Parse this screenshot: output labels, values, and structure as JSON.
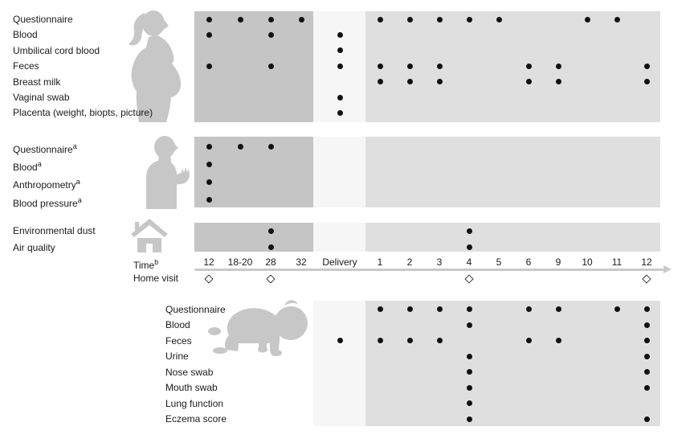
{
  "colors": {
    "pregnancy_block": "#c5c5c5",
    "delivery_block": "#f6f6f6",
    "postnatal_block": "#dfdfdf",
    "dot": "#111111",
    "icon": "#c7c7c7",
    "axis_line": "#c9c9c9",
    "text": "#1a1a1a"
  },
  "axis": {
    "time_label": "Time",
    "time_superscript": "b",
    "home_visit_label": "Home visit",
    "ticks": [
      {
        "id": "w12",
        "label": "12"
      },
      {
        "id": "w1820",
        "label": "18-20"
      },
      {
        "id": "w28",
        "label": "28"
      },
      {
        "id": "w32",
        "label": "32"
      },
      {
        "id": "del",
        "label": "Delivery"
      },
      {
        "id": "m1",
        "label": "1"
      },
      {
        "id": "m2",
        "label": "2"
      },
      {
        "id": "m3",
        "label": "3"
      },
      {
        "id": "m4",
        "label": "4"
      },
      {
        "id": "m5",
        "label": "5"
      },
      {
        "id": "m6",
        "label": "6"
      },
      {
        "id": "m9",
        "label": "9"
      },
      {
        "id": "m10",
        "label": "10"
      },
      {
        "id": "m11",
        "label": "11"
      },
      {
        "id": "m12",
        "label": "12"
      }
    ],
    "home_visits": [
      "w12",
      "w28",
      "m4",
      "m12"
    ]
  },
  "sections": [
    {
      "id": "mother",
      "icon": "pregnant-woman-icon",
      "rows": [
        {
          "label": "Questionnaire",
          "sup": "",
          "marks": [
            "w12",
            "w1820",
            "w28",
            "w32",
            "m1",
            "m2",
            "m3",
            "m4",
            "m5",
            "m10",
            "m11"
          ]
        },
        {
          "label": "Blood",
          "sup": "",
          "marks": [
            "w12",
            "w28",
            "del"
          ]
        },
        {
          "label": "Umbilical cord blood",
          "sup": "",
          "marks": [
            "del"
          ]
        },
        {
          "label": "Feces",
          "sup": "",
          "marks": [
            "w12",
            "w28",
            "del",
            "m1",
            "m2",
            "m3",
            "m6",
            "m9",
            "m12"
          ]
        },
        {
          "label": "Breast milk",
          "sup": "",
          "marks": [
            "m1",
            "m2",
            "m3",
            "m6",
            "m9",
            "m12"
          ]
        },
        {
          "label": "Vaginal swab",
          "sup": "",
          "marks": [
            "del"
          ]
        },
        {
          "label": "Placenta (weight, biopts, picture)",
          "sup": "",
          "marks": [
            "del"
          ]
        }
      ]
    },
    {
      "id": "father",
      "icon": "adult-man-icon",
      "rows": [
        {
          "label": "Questionnaire",
          "sup": "a",
          "marks": [
            "w12",
            "w1820",
            "w28"
          ]
        },
        {
          "label": "Blood",
          "sup": "a",
          "marks": [
            "w12"
          ]
        },
        {
          "label": "Anthropometry",
          "sup": "a",
          "marks": [
            "w12"
          ]
        },
        {
          "label": "Blood pressure",
          "sup": "a",
          "marks": [
            "w12"
          ]
        }
      ]
    },
    {
      "id": "environment",
      "icon": "house-icon",
      "rows": [
        {
          "label": "Environmental dust",
          "sup": "",
          "marks": [
            "w28",
            "m4"
          ]
        },
        {
          "label": "Air quality",
          "sup": "",
          "marks": [
            "w28",
            "m4"
          ]
        }
      ]
    },
    {
      "id": "infant",
      "icon": "crawling-baby-icon",
      "rows": [
        {
          "label": "Questionnaire",
          "sup": "",
          "marks": [
            "m1",
            "m2",
            "m3",
            "m4",
            "m6",
            "m9",
            "m11",
            "m12"
          ]
        },
        {
          "label": "Blood",
          "sup": "",
          "marks": [
            "m4",
            "m12"
          ]
        },
        {
          "label": "Feces",
          "sup": "",
          "marks": [
            "del",
            "m1",
            "m2",
            "m3",
            "m6",
            "m9",
            "m12"
          ]
        },
        {
          "label": "Urine",
          "sup": "",
          "marks": [
            "m4",
            "m12"
          ]
        },
        {
          "label": "Nose swab",
          "sup": "",
          "marks": [
            "m4",
            "m12"
          ]
        },
        {
          "label": "Mouth swab",
          "sup": "",
          "marks": [
            "m4",
            "m12"
          ]
        },
        {
          "label": "Lung function",
          "sup": "",
          "marks": [
            "m4"
          ]
        },
        {
          "label": "Eczema score",
          "sup": "",
          "marks": [
            "m4",
            "m12"
          ]
        }
      ]
    }
  ]
}
